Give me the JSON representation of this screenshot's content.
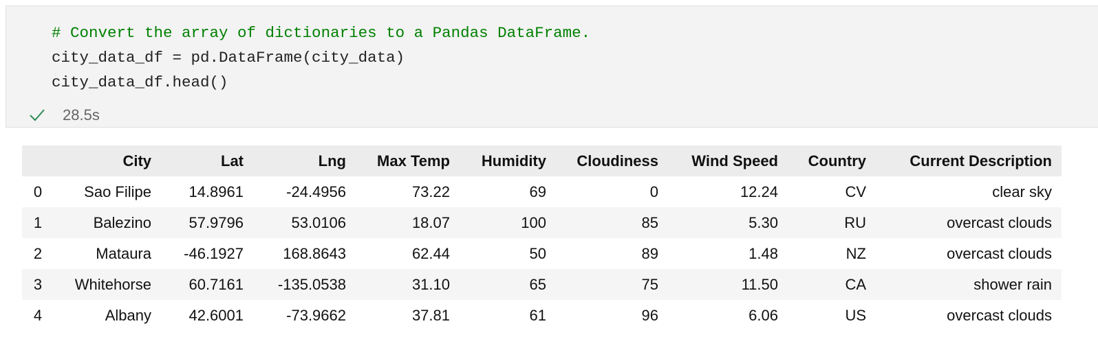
{
  "code_cell": {
    "lines": [
      "# Convert the array of dictionaries to a Pandas DataFrame.",
      "city_data_df = pd.DataFrame(city_data)",
      "city_data_df.head()"
    ],
    "status": "28.5s"
  },
  "table": {
    "header": [
      "City",
      "Lat",
      "Lng",
      "Max Temp",
      "Humidity",
      "Cloudiness",
      "Wind Speed",
      "Country",
      "Current Description"
    ],
    "rows": [
      [
        "0",
        "Sao Filipe",
        "14.8961",
        "-24.4956",
        "73.22",
        "69",
        "0",
        "12.24",
        "CV",
        "clear sky"
      ],
      [
        "1",
        "Balezino",
        "57.9796",
        "53.0106",
        "18.07",
        "100",
        "85",
        "5.30",
        "RU",
        "overcast clouds"
      ],
      [
        "2",
        "Mataura",
        "-46.1927",
        "168.8643",
        "62.44",
        "50",
        "89",
        "1.48",
        "NZ",
        "overcast clouds"
      ],
      [
        "3",
        "Whitehorse",
        "60.7161",
        "-135.0538",
        "31.10",
        "65",
        "75",
        "11.50",
        "CA",
        "shower rain"
      ],
      [
        "4",
        "Albany",
        "42.6001",
        "-73.9662",
        "37.81",
        "61",
        "96",
        "6.06",
        "US",
        "overcast clouds"
      ]
    ]
  }
}
